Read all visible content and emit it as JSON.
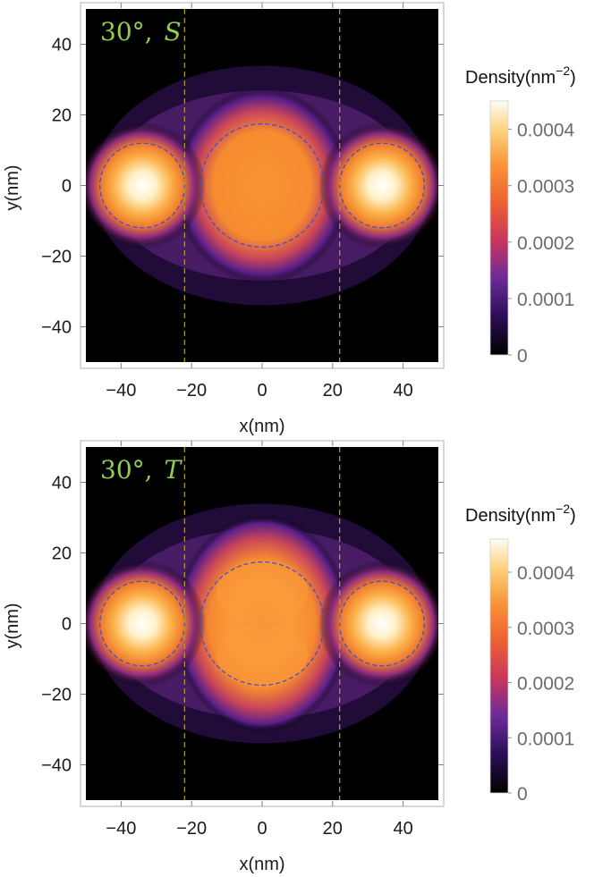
{
  "chart_data": [
    {
      "type": "heatmap",
      "panel_label_angle": "30°,",
      "panel_label_state": "S",
      "xlabel": "x(nm)",
      "ylabel": "y(nm)",
      "xlim": [
        -50,
        50
      ],
      "ylim": [
        -50,
        50
      ],
      "x_ticks": [
        -40,
        -20,
        0,
        20,
        40
      ],
      "y_ticks": [
        -40,
        -20,
        0,
        20,
        40
      ],
      "x_tick_labels": [
        "−40",
        "−20",
        "0",
        "20",
        "40"
      ],
      "y_tick_labels": [
        "−40",
        "−20",
        "0",
        "20",
        "40"
      ],
      "colorbar": {
        "title": "Density(nm",
        "title_exponent": "−2",
        "title_close": ")",
        "range": [
          0,
          0.00045
        ],
        "ticks": [
          0,
          0.0001,
          0.0002,
          0.0003,
          0.0004
        ],
        "tick_labels": [
          "0",
          "0.0001",
          "0.0002",
          "0.0003",
          "0.0004"
        ]
      },
      "dot_circles": [
        {
          "cx": -34,
          "cy": 0,
          "r": 12
        },
        {
          "cx": 0,
          "cy": 0,
          "r": 17.5
        },
        {
          "cx": 34,
          "cy": 0,
          "r": 12
        }
      ],
      "vertical_lines_x": [
        -22,
        22
      ],
      "density_peaks": [
        {
          "x": -34,
          "y": 0,
          "value": 0.00045
        },
        {
          "x": 34,
          "y": 0,
          "value": 0.00045
        },
        {
          "x": 0,
          "y": 0,
          "value": 0.00028
        }
      ]
    },
    {
      "type": "heatmap",
      "panel_label_angle": "30°,",
      "panel_label_state": "T",
      "xlabel": "x(nm)",
      "ylabel": "y(nm)",
      "xlim": [
        -50,
        50
      ],
      "ylim": [
        -50,
        50
      ],
      "x_ticks": [
        -40,
        -20,
        0,
        20,
        40
      ],
      "y_ticks": [
        -40,
        -20,
        0,
        20,
        40
      ],
      "x_tick_labels": [
        "−40",
        "−20",
        "0",
        "20",
        "40"
      ],
      "y_tick_labels": [
        "−40",
        "−20",
        "0",
        "20",
        "40"
      ],
      "colorbar": {
        "title": "Density(nm",
        "title_exponent": "−2",
        "title_close": ")",
        "range": [
          0,
          0.00046
        ],
        "ticks": [
          0,
          0.0001,
          0.0002,
          0.0003,
          0.0004
        ],
        "tick_labels": [
          "0",
          "0.0001",
          "0.0002",
          "0.0003",
          "0.0004"
        ]
      },
      "dot_circles": [
        {
          "cx": -34,
          "cy": 0,
          "r": 12
        },
        {
          "cx": 0,
          "cy": 0,
          "r": 17.5
        },
        {
          "cx": 34,
          "cy": 0,
          "r": 12
        }
      ],
      "vertical_lines_x": [
        -22,
        22
      ],
      "density_peaks": [
        {
          "x": -34,
          "y": 0,
          "value": 0.00046
        },
        {
          "x": 34,
          "y": 0,
          "value": 0.00046
        },
        {
          "x": 0,
          "y": 9,
          "value": 0.00031
        },
        {
          "x": 0,
          "y": -9,
          "value": 0.00031
        }
      ]
    }
  ],
  "colors": {
    "label_green": "#8fce4e",
    "circle_blue": "#4a4ad0",
    "line_olive": "#b0a030",
    "frame": "#b0b0b0"
  }
}
